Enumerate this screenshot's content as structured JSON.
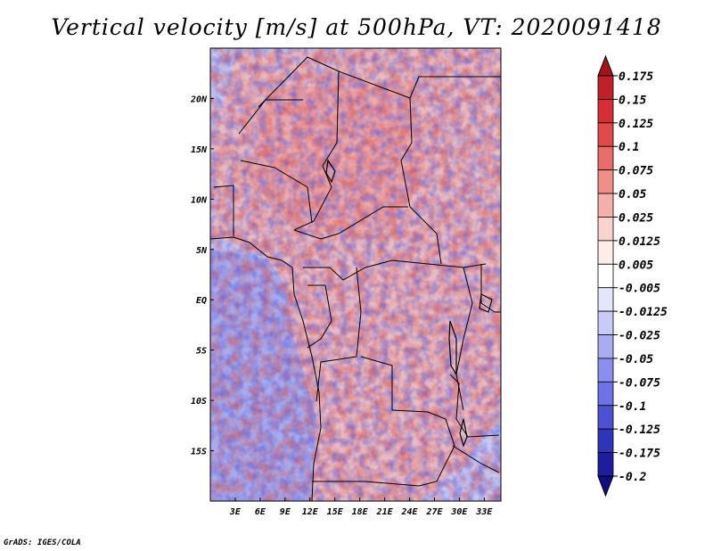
{
  "chart_data": {
    "type": "heatmap",
    "title": "Vertical velocity [m/s] at 500hPa, VT: 2020091418",
    "xlabel": "",
    "ylabel": "",
    "x_ticks": [
      "3E",
      "6E",
      "9E",
      "12E",
      "15E",
      "18E",
      "21E",
      "24E",
      "27E",
      "30E",
      "33E"
    ],
    "y_ticks": [
      "20N",
      "15N",
      "10N",
      "5N",
      "EQ",
      "5S",
      "10S",
      "15S"
    ],
    "x_tick_values": [
      3,
      6,
      9,
      12,
      15,
      18,
      21,
      24,
      27,
      30,
      33
    ],
    "y_tick_values": [
      20,
      15,
      10,
      5,
      0,
      -5,
      -10,
      -15
    ],
    "xlim": [
      0,
      35
    ],
    "ylim": [
      -20,
      25
    ],
    "colorbar": {
      "levels": [
        "0.175",
        "0.15",
        "0.125",
        "0.1",
        "0.075",
        "0.05",
        "0.025",
        "0.0125",
        "0.005",
        "-0.005",
        "-0.0125",
        "-0.025",
        "-0.05",
        "-0.075",
        "-0.1",
        "-0.125",
        "-0.175",
        "-0.2"
      ],
      "colors": [
        "#a0141e",
        "#c0202a",
        "#d42e36",
        "#e04a4a",
        "#e86c6a",
        "#f08e8a",
        "#f6b0ac",
        "#fad2ce",
        "#fdecea",
        "#ffffff",
        "#e4e6fc",
        "#c8cbf8",
        "#a8acf2",
        "#8a8eec",
        "#6e72e6",
        "#4e52d2",
        "#3034b8",
        "#1e1e9c",
        "#100c82"
      ]
    }
  },
  "credit": "GrADS: IGES/COLA"
}
